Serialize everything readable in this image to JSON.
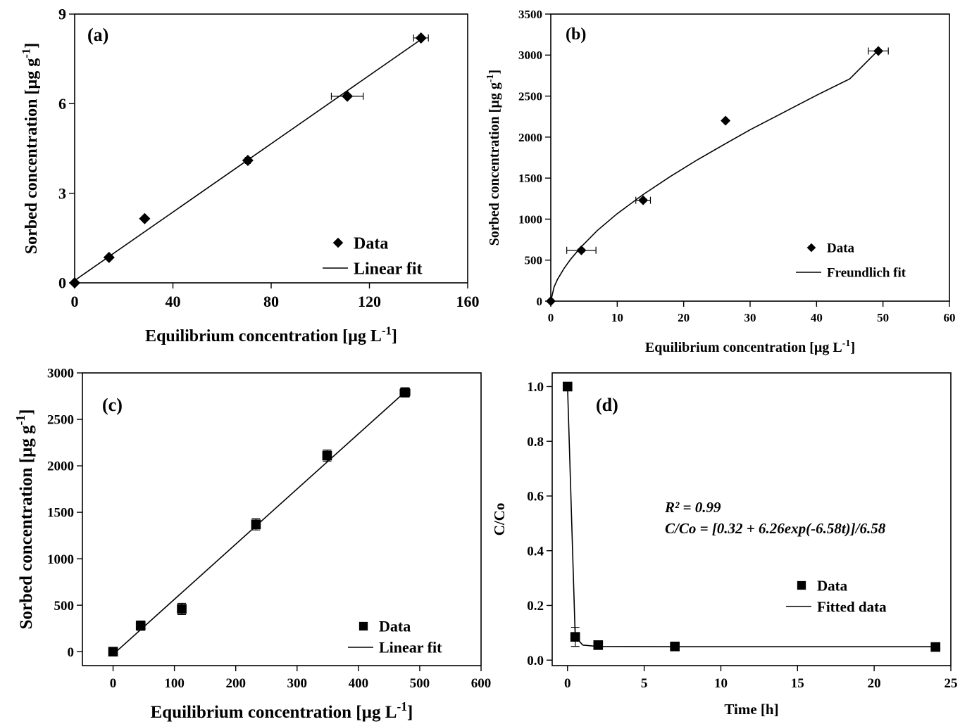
{
  "chart_data": [
    {
      "type": "scatter",
      "panel_label": "(a)",
      "xlabel": "Equilibrium  concentration [µg L",
      "xlabel_sup": "-1",
      "xlabel_end": "]",
      "ylabel": "Sorbed concentration [µg g",
      "ylabel_sup": "-1",
      "ylabel_end": "]",
      "xlim": [
        0,
        160
      ],
      "ylim": [
        0,
        9
      ],
      "xticks": [
        0,
        40,
        80,
        120,
        160
      ],
      "yticks": [
        0,
        3,
        6,
        9
      ],
      "marker": "diamond",
      "legend_position": "bottom-right",
      "series": [
        {
          "name": "Data",
          "kind": "points",
          "points": [
            {
              "x": 0,
              "y": 0
            },
            {
              "x": 14,
              "y": 0.85
            },
            {
              "x": 28.5,
              "y": 2.15
            },
            {
              "x": 70.5,
              "y": 4.1,
              "xerr": 1
            },
            {
              "x": 111,
              "y": 6.25,
              "xerr": 6.5
            },
            {
              "x": 141,
              "y": 8.2,
              "xerr": 3
            }
          ]
        },
        {
          "name": "Linear fit",
          "kind": "line",
          "points": [
            {
              "x": 0,
              "y": 0.08
            },
            {
              "x": 141,
              "y": 8.15
            }
          ]
        }
      ]
    },
    {
      "type": "scatter",
      "panel_label": "(b)",
      "xlabel": "Equilibrium  concentration [µg L",
      "xlabel_sup": "-1",
      "xlabel_end": "]",
      "ylabel": "Sorbed concentration [µg g",
      "ylabel_sup": "-1",
      "ylabel_end": "]",
      "xlim": [
        0,
        60
      ],
      "ylim": [
        0,
        3500
      ],
      "xticks": [
        0,
        10,
        20,
        30,
        40,
        50,
        60
      ],
      "yticks": [
        0,
        500,
        1000,
        1500,
        2000,
        2500,
        3000,
        3500
      ],
      "marker": "diamond",
      "legend_position": "bottom-right",
      "series": [
        {
          "name": "Data",
          "kind": "points",
          "points": [
            {
              "x": 0,
              "y": 0
            },
            {
              "x": 4.6,
              "y": 620,
              "xerr": 2.2
            },
            {
              "x": 13.9,
              "y": 1230,
              "xerr": 1.1
            },
            {
              "x": 26.3,
              "y": 2200
            },
            {
              "x": 49.3,
              "y": 3050,
              "xerr": 1.5
            }
          ]
        },
        {
          "name": "Freundlich fit",
          "kind": "line",
          "points": [
            {
              "x": 0,
              "y": 0
            },
            {
              "x": 0.5,
              "y": 172
            },
            {
              "x": 1,
              "y": 263
            },
            {
              "x": 2,
              "y": 400
            },
            {
              "x": 3,
              "y": 512
            },
            {
              "x": 4.6,
              "y": 665
            },
            {
              "x": 7,
              "y": 860
            },
            {
              "x": 10,
              "y": 1066
            },
            {
              "x": 13.9,
              "y": 1300
            },
            {
              "x": 18,
              "y": 1520
            },
            {
              "x": 22,
              "y": 1720
            },
            {
              "x": 26.3,
              "y": 1920
            },
            {
              "x": 30,
              "y": 2090
            },
            {
              "x": 35,
              "y": 2300
            },
            {
              "x": 40,
              "y": 2510
            },
            {
              "x": 45,
              "y": 2710
            },
            {
              "x": 49.3,
              "y": 3060
            }
          ]
        }
      ]
    },
    {
      "type": "scatter",
      "panel_label": "(c)",
      "xlabel": "Equilibrium concentration [µg L",
      "xlabel_sup": "-1",
      "xlabel_end": "]",
      "ylabel": "Sorbed concentration [µg g",
      "ylabel_sup": "-1",
      "ylabel_end": "]",
      "xlim": [
        -50,
        600
      ],
      "ylim": [
        -150,
        3000
      ],
      "xticks": [
        0,
        100,
        200,
        300,
        400,
        500,
        600
      ],
      "yticks": [
        0,
        500,
        1000,
        1500,
        2000,
        2500,
        3000
      ],
      "marker": "square",
      "legend_position": "bottom-right",
      "series": [
        {
          "name": "Data",
          "kind": "points",
          "points": [
            {
              "x": 0,
              "y": 0
            },
            {
              "x": 45,
              "y": 280,
              "yerr": 50
            },
            {
              "x": 112,
              "y": 460,
              "yerr": 60
            },
            {
              "x": 233,
              "y": 1370,
              "yerr": 60
            },
            {
              "x": 349,
              "y": 2110,
              "yerr": 60
            },
            {
              "x": 476,
              "y": 2790,
              "yerr": 50,
              "xerr": 8
            }
          ]
        },
        {
          "name": "Linear fit",
          "kind": "line",
          "points": [
            {
              "x": 0,
              "y": -30
            },
            {
              "x": 476,
              "y": 2795
            }
          ]
        }
      ]
    },
    {
      "type": "scatter",
      "panel_label": "(d)",
      "xlabel": "Time [h]",
      "xlabel_sup": "",
      "xlabel_end": "",
      "ylabel": "C/Co",
      "ylabel_sup": "",
      "ylabel_end": "",
      "xlim": [
        -1,
        25
      ],
      "ylim": [
        -0.02,
        1.05
      ],
      "xticks": [
        0,
        5,
        10,
        15,
        20,
        25
      ],
      "yticks": [
        0.0,
        0.2,
        0.4,
        0.6,
        0.8,
        1.0
      ],
      "ytick_decimals": 1,
      "marker": "square",
      "legend_position": "bottom-right",
      "annotations": [
        "R² = 0.99",
        "C/Co = [0.32 + 6.26exp(-6.58t)]/6.58"
      ],
      "series": [
        {
          "name": "Data",
          "kind": "points",
          "points": [
            {
              "x": 0,
              "y": 1.0
            },
            {
              "x": 0.5,
              "y": 0.085,
              "yerr": 0.035
            },
            {
              "x": 2,
              "y": 0.055
            },
            {
              "x": 7,
              "y": 0.05
            },
            {
              "x": 24,
              "y": 0.048
            }
          ]
        },
        {
          "name": "Fitted data",
          "kind": "line",
          "points": [
            {
              "x": 0,
              "y": 1.0
            },
            {
              "x": 0.5,
              "y": 0.085
            },
            {
              "x": 1,
              "y": 0.055
            },
            {
              "x": 2,
              "y": 0.05
            },
            {
              "x": 7,
              "y": 0.049
            },
            {
              "x": 24,
              "y": 0.049
            }
          ]
        }
      ]
    }
  ]
}
